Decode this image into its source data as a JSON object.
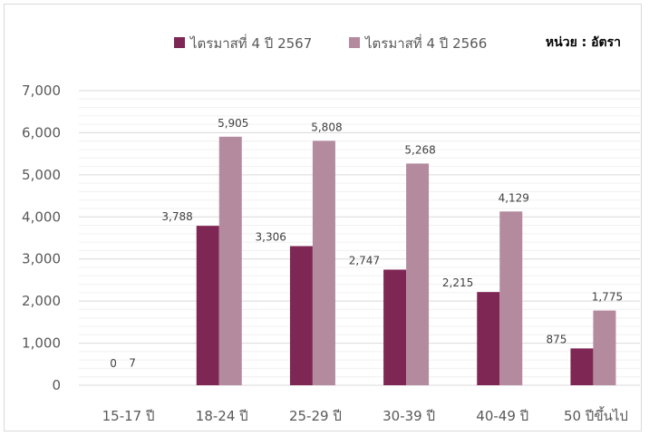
{
  "chart_data": {
    "type": "bar",
    "unit_label": "หน่วย : อัตรา",
    "categories": [
      "15-17 ปี",
      "18-24 ปี",
      "25-29 ปี",
      "30-39 ปี",
      "40-49 ปี",
      "50 ปีขึ้นไป"
    ],
    "series": [
      {
        "name": "ไตรมาสที่ 4 ปี 2567",
        "color": "#7f2754",
        "values": [
          0,
          3788,
          3306,
          2747,
          2215,
          875
        ],
        "labels": [
          "0",
          "3,788",
          "3,306",
          "2,747",
          "2,215",
          "875"
        ]
      },
      {
        "name": "ไตรมาสที่ 4 ปี 2566",
        "color": "#b48a9e",
        "values": [
          7,
          5905,
          5808,
          5268,
          4129,
          1775
        ],
        "labels": [
          "7",
          "5,905",
          "5,808",
          "5,268",
          "4,129",
          "1,775"
        ]
      }
    ],
    "ylim": [
      0,
      7000
    ],
    "yticks": [
      0,
      1000,
      2000,
      3000,
      4000,
      5000,
      6000,
      7000
    ],
    "ytick_labels": [
      "0",
      "1,000",
      "2,000",
      "3,000",
      "4,000",
      "5,000",
      "6,000",
      "7,000"
    ],
    "grid": true,
    "legend_position": "top"
  }
}
